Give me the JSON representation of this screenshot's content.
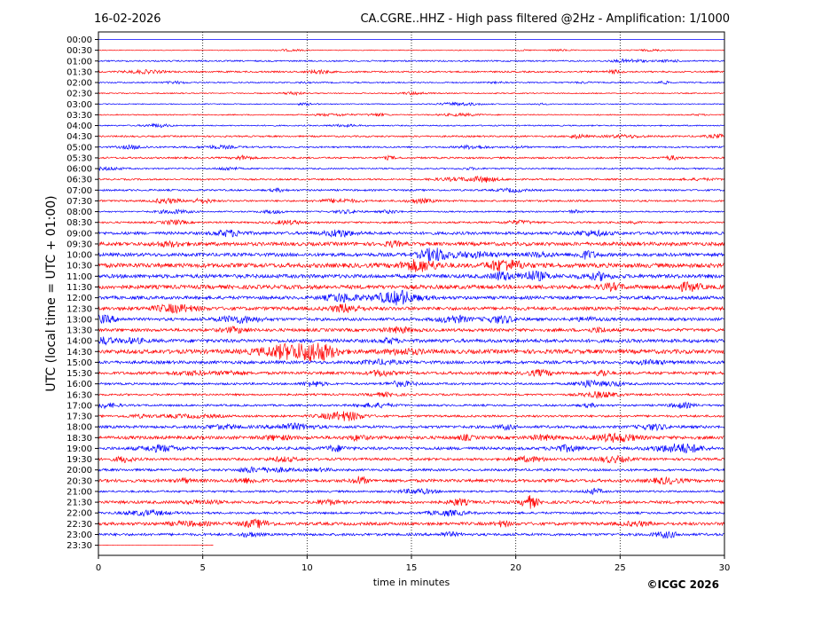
{
  "header": {
    "date": "16-02-2026",
    "title": "CA.CGRE..HHZ - High pass filtered @2Hz - Amplification: 1/1000"
  },
  "footer": {
    "copyright": "©ICGC 2026"
  },
  "chart_data": {
    "type": "line",
    "title": "CA.CGRE..HHZ - High pass filtered @2Hz - Amplification: 1/1000",
    "xlabel": "time in minutes",
    "ylabel": "UTC (local time = UTC + 01:00)",
    "xlim": [
      0,
      30
    ],
    "x_ticks": [
      0,
      5,
      10,
      15,
      20,
      25,
      30
    ],
    "y_tick_labels": [
      "00:00",
      "00:30",
      "01:00",
      "01:30",
      "02:00",
      "02:30",
      "03:00",
      "03:30",
      "04:00",
      "04:30",
      "05:00",
      "05:30",
      "06:00",
      "06:30",
      "07:00",
      "07:30",
      "08:00",
      "08:30",
      "09:00",
      "09:30",
      "10:00",
      "10:30",
      "11:00",
      "11:30",
      "12:00",
      "12:30",
      "13:00",
      "13:30",
      "14:00",
      "14:30",
      "15:00",
      "15:30",
      "16:00",
      "16:30",
      "17:00",
      "17:30",
      "18:00",
      "18:30",
      "19:00",
      "19:30",
      "20:00",
      "20:30",
      "21:00",
      "21:30",
      "22:00",
      "22:30",
      "23:00",
      "23:30"
    ],
    "grid": "vertical dotted lines at x ticks",
    "colors": {
      "odd_traces": "#ff0000",
      "even_traces": "#0000ff"
    },
    "trace_amplitude": [
      0.0,
      0.4,
      0.8,
      0.9,
      0.7,
      0.6,
      0.5,
      0.6,
      0.7,
      0.9,
      0.9,
      1.0,
      0.8,
      0.9,
      1.0,
      1.0,
      0.8,
      1.0,
      1.6,
      2.0,
      1.9,
      2.4,
      2.1,
      2.2,
      1.8,
      1.9,
      1.6,
      1.7,
      1.9,
      2.3,
      1.7,
      1.6,
      1.2,
      1.1,
      1.1,
      1.2,
      1.5,
      1.8,
      1.6,
      1.4,
      1.3,
      1.7,
      1.1,
      1.6,
      1.2,
      1.7,
      1.4,
      0.1
    ],
    "trace_note": "00:00 and 23:30 traces are flat; 23:30 trace spans only first minutes"
  }
}
